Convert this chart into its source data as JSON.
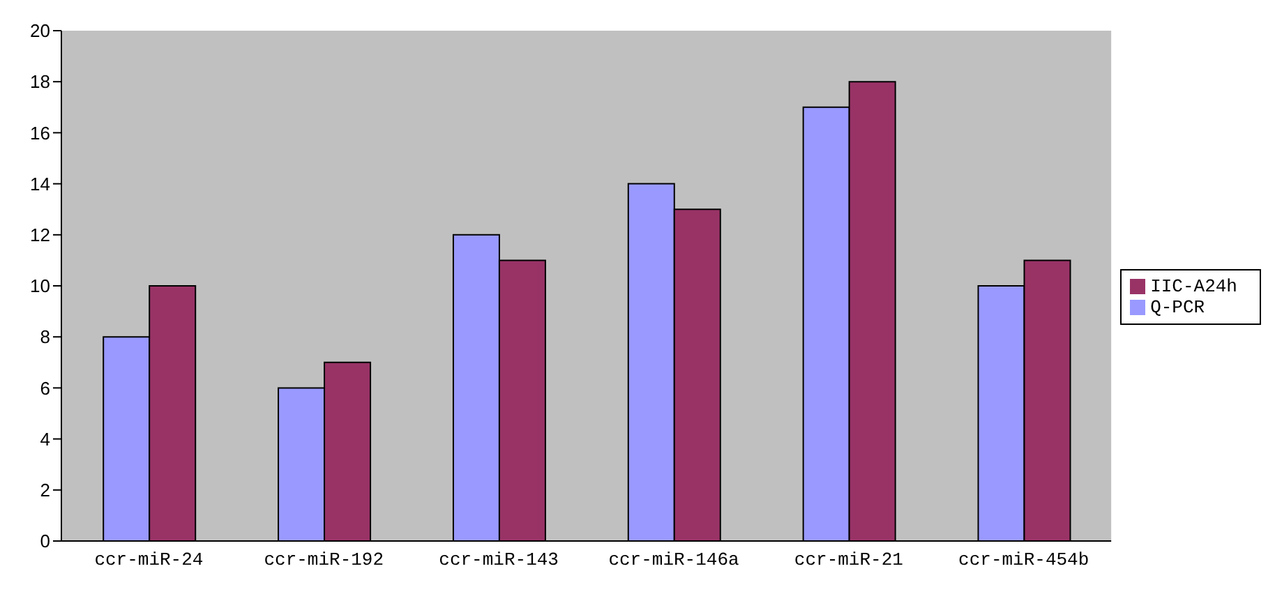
{
  "chart_data": {
    "type": "bar",
    "categories": [
      "ccr-miR-24",
      "ccr-miR-192",
      "ccr-miR-143",
      "ccr-miR-146a",
      "ccr-miR-21",
      "ccr-miR-454b"
    ],
    "series": [
      {
        "name": "Q-PCR",
        "color": "#9999ff",
        "values": [
          8,
          6,
          12,
          14,
          17,
          10
        ]
      },
      {
        "name": "IIC-A24h",
        "color": "#993366",
        "values": [
          10,
          7,
          11,
          13,
          18,
          11
        ]
      }
    ],
    "ylim": [
      0,
      20
    ],
    "yticks": [
      0,
      2,
      4,
      6,
      8,
      10,
      12,
      14,
      16,
      18,
      20
    ],
    "legend": "right"
  }
}
